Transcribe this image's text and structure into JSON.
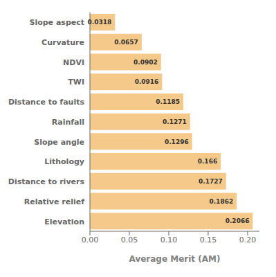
{
  "chart_data": {
    "type": "bar",
    "orientation": "horizontal",
    "categories": [
      "Elevation",
      "Relative relief",
      "Distance to rivers",
      "Lithology",
      "Slope angle",
      "Rainfall",
      "Distance to faults",
      "TWI",
      "NDVI",
      "Curvature",
      "Slope aspect"
    ],
    "values": [
      0.2066,
      0.1862,
      0.1727,
      0.166,
      0.1296,
      0.1271,
      0.1185,
      0.0916,
      0.0902,
      0.0657,
      0.0318
    ],
    "data_labels": true,
    "color": "#F5C98A",
    "xlabel": "Average Merit (AM)",
    "xlim": [
      0,
      0.215
    ],
    "xticks": [
      {
        "value": 0,
        "label": "0.00"
      },
      0.05,
      {
        "value": 0.1,
        "label": "0.10"
      },
      0.15,
      {
        "value": 0.2,
        "label": "0.20"
      }
    ],
    "grid": false
  }
}
